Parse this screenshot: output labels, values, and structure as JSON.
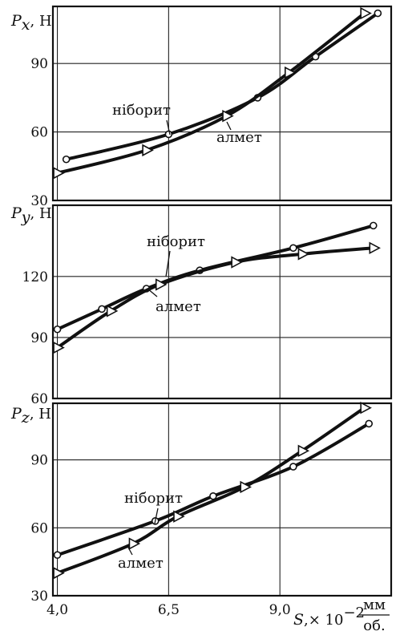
{
  "chart_data": [
    {
      "type": "line",
      "ylabel": {
        "symbol": "P",
        "subscript": "x",
        "unit": ", Н"
      },
      "xlim": [
        3.9,
        11.5
      ],
      "ylim": [
        30,
        115
      ],
      "yticks": [
        30,
        60,
        90
      ],
      "grid": true,
      "series": [
        {
          "name": "ніборит",
          "marker": "circle",
          "x": [
            4.2,
            6.5,
            8.5,
            9.8,
            11.2
          ],
          "y": [
            48,
            59,
            75,
            93,
            112
          ]
        },
        {
          "name": "алмет",
          "marker": "triangle",
          "x": [
            4.0,
            6.0,
            7.8,
            9.2,
            10.9
          ],
          "y": [
            42,
            52,
            67,
            86,
            112
          ]
        }
      ]
    },
    {
      "type": "line",
      "ylabel": {
        "symbol": "P",
        "subscript": "y",
        "unit": ", Н"
      },
      "xlim": [
        3.9,
        11.5
      ],
      "ylim": [
        60,
        155
      ],
      "yticks": [
        60,
        90,
        120
      ],
      "grid": true,
      "series": [
        {
          "name": "ніборит",
          "marker": "circle",
          "x": [
            4.0,
            5.0,
            6.0,
            7.2,
            9.3,
            11.1
          ],
          "y": [
            94,
            104,
            114,
            123,
            134,
            145
          ]
        },
        {
          "name": "алмет",
          "marker": "triangle",
          "x": [
            4.0,
            5.2,
            6.3,
            8.0,
            9.5,
            11.1
          ],
          "y": [
            85,
            103,
            116,
            127,
            131,
            134
          ]
        }
      ]
    },
    {
      "type": "line",
      "ylabel": {
        "symbol": "P",
        "subscript": "z",
        "unit": ", Н"
      },
      "xlim": [
        3.9,
        11.5
      ],
      "ylim": [
        30,
        115
      ],
      "yticks": [
        30,
        60,
        90
      ],
      "xticks": [
        4.0,
        6.5,
        9.0
      ],
      "xtick_labels": [
        "4,0",
        "6,5",
        "9,0"
      ],
      "grid": true,
      "series": [
        {
          "name": "ніборит",
          "marker": "circle",
          "x": [
            4.0,
            6.2,
            7.5,
            9.3,
            11.0
          ],
          "y": [
            48,
            63,
            74,
            87,
            106
          ]
        },
        {
          "name": "алмет",
          "marker": "triangle",
          "x": [
            4.0,
            5.7,
            6.7,
            8.2,
            9.5,
            10.9
          ],
          "y": [
            40,
            53,
            65,
            78,
            94,
            113
          ]
        }
      ]
    }
  ],
  "xaxis": {
    "symbol": "S",
    "multiplier": ",× 10",
    "exponent": "−2",
    "unit_numerator": "мм",
    "unit_denominator": "об."
  }
}
